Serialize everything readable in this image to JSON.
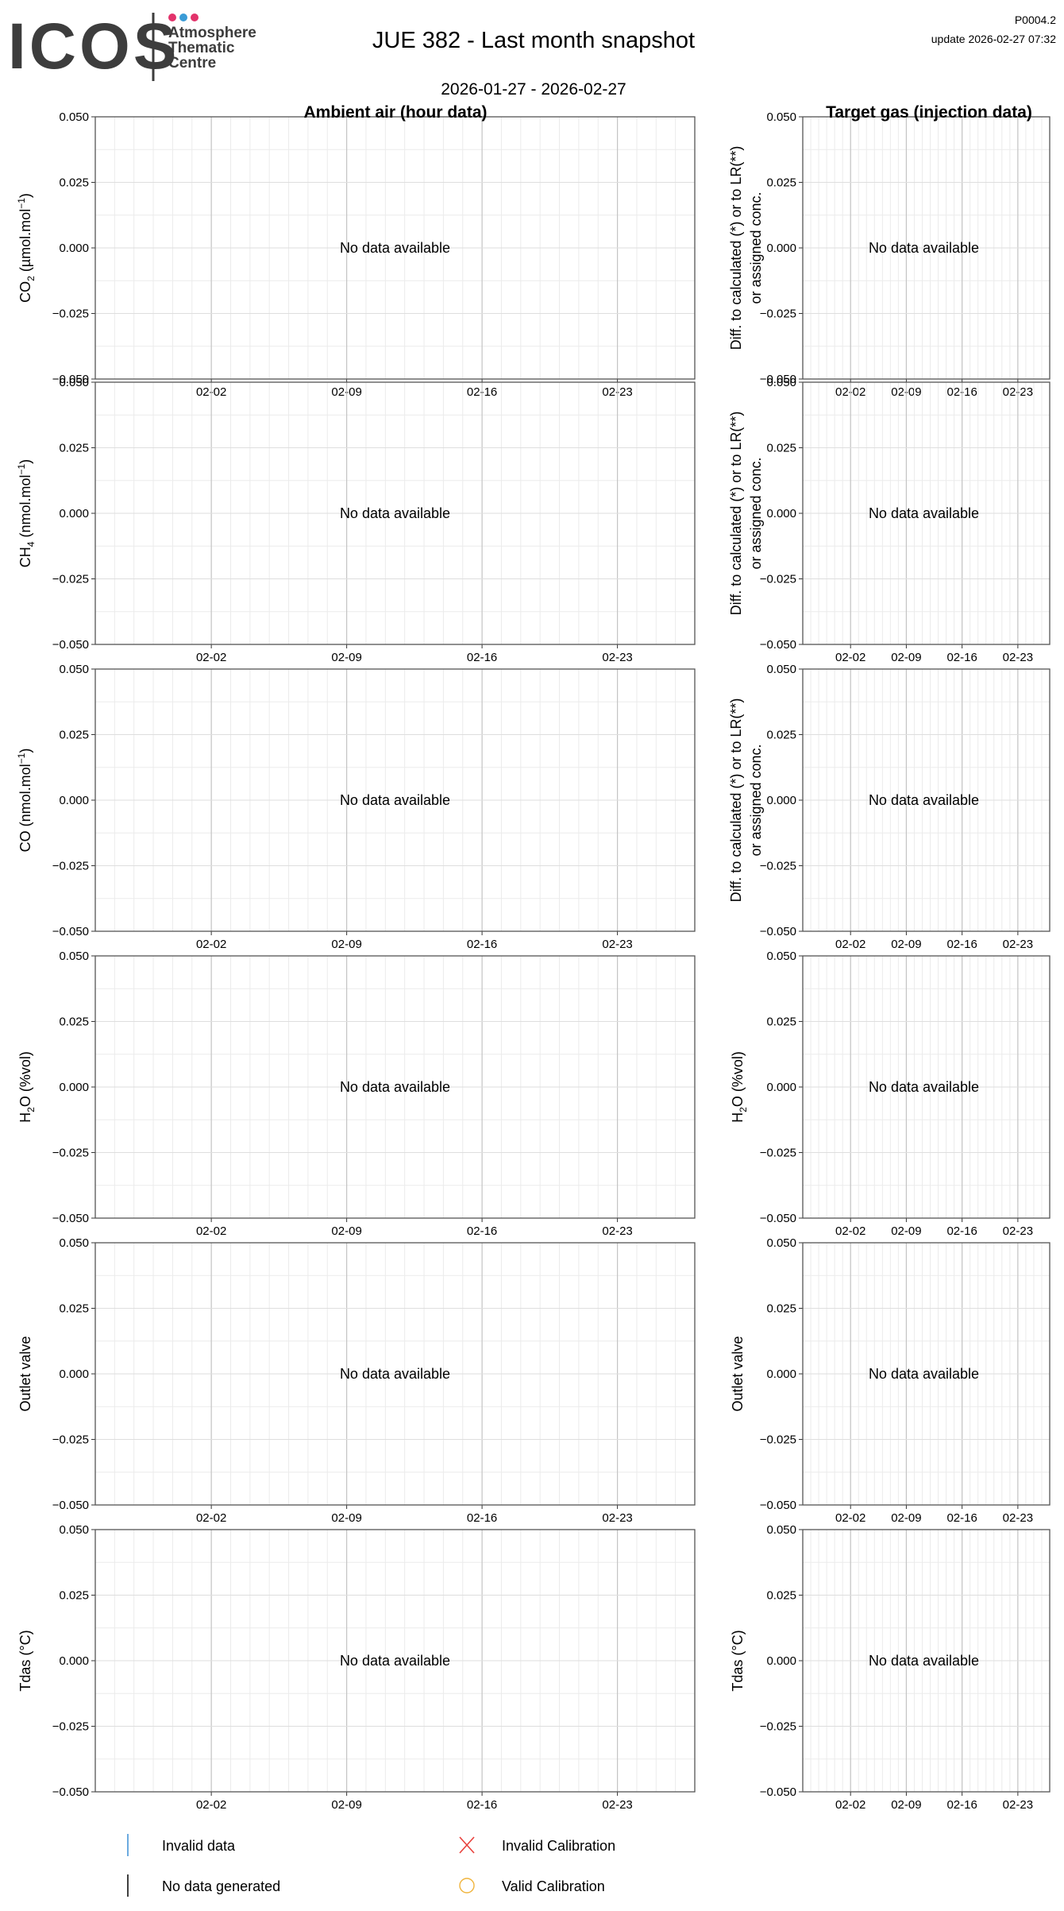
{
  "header": {
    "logo": {
      "wordmark": "ICOS",
      "line1": "Atmosphere",
      "line2": "Thematic",
      "line3": "Centre",
      "dot_colors": [
        "#e2336b",
        "#3a9bd6",
        "#e2336b"
      ]
    },
    "title": "JUE 382 - Last month snapshot",
    "date_range": "2026-01-27 - 2026-02-27",
    "code": "P0004.2",
    "update": "update  2026-02-27 07:32"
  },
  "columns": {
    "left_title": "Ambient air (hour data)",
    "right_title": "Target gas (injection data)"
  },
  "no_data_text": "No data available",
  "chart_data": [
    {
      "type": "line",
      "panel": "ambient-co2",
      "column": "left",
      "ylabel": "CO2 (µmol.mol-1)",
      "ylabel_parts": [
        "CO",
        "2",
        " (µmol.mol",
        "−1",
        ")"
      ],
      "xticks": [
        "02-02",
        "02-09",
        "02-16",
        "02-23"
      ],
      "yticks": [
        "-0.050",
        "-0.025",
        "0.000",
        "0.025",
        "0.050"
      ],
      "ylim": [
        -0.05,
        0.05
      ],
      "xlim": [
        "2026-01-27",
        "2026-02-27"
      ],
      "grid": true,
      "series": []
    },
    {
      "type": "line",
      "panel": "target-co2",
      "column": "right",
      "ylabel_lines": [
        "Diff. to calculated (*) or to LR(**)",
        "or assigned conc."
      ],
      "xticks": [
        "02-02",
        "02-09",
        "02-16",
        "02-23"
      ],
      "yticks": [
        "-0.050",
        "-0.025",
        "0.000",
        "0.025",
        "0.050"
      ],
      "ylim": [
        -0.05,
        0.05
      ],
      "xlim": [
        "2026-01-27",
        "2026-02-27"
      ],
      "grid": true,
      "series": []
    },
    {
      "type": "line",
      "panel": "ambient-ch4",
      "column": "left",
      "ylabel": "CH4 (nmol.mol-1)",
      "ylabel_parts": [
        "CH",
        "4",
        " (nmol.mol",
        "−1",
        ")"
      ],
      "xticks": [
        "02-02",
        "02-09",
        "02-16",
        "02-23"
      ],
      "yticks": [
        "-0.050",
        "-0.025",
        "0.000",
        "0.025",
        "0.050"
      ],
      "ylim": [
        -0.05,
        0.05
      ],
      "xlim": [
        "2026-01-27",
        "2026-02-27"
      ],
      "grid": true,
      "series": []
    },
    {
      "type": "line",
      "panel": "target-ch4",
      "column": "right",
      "ylabel_lines": [
        "Diff. to calculated (*) or to LR(**)",
        "or assigned conc."
      ],
      "xticks": [
        "02-02",
        "02-09",
        "02-16",
        "02-23"
      ],
      "yticks": [
        "-0.050",
        "-0.025",
        "0.000",
        "0.025",
        "0.050"
      ],
      "ylim": [
        -0.05,
        0.05
      ],
      "xlim": [
        "2026-01-27",
        "2026-02-27"
      ],
      "grid": true,
      "series": []
    },
    {
      "type": "line",
      "panel": "ambient-co",
      "column": "left",
      "ylabel": "CO (nmol.mol-1)",
      "ylabel_parts": [
        "CO (nmol.mol",
        "",
        "",
        "−1",
        ")"
      ],
      "xticks": [
        "02-02",
        "02-09",
        "02-16",
        "02-23"
      ],
      "yticks": [
        "-0.050",
        "-0.025",
        "0.000",
        "0.025",
        "0.050"
      ],
      "ylim": [
        -0.05,
        0.05
      ],
      "xlim": [
        "2026-01-27",
        "2026-02-27"
      ],
      "grid": true,
      "series": []
    },
    {
      "type": "line",
      "panel": "target-co",
      "column": "right",
      "ylabel_lines": [
        "Diff. to calculated (*) or to LR(**)",
        "or assigned conc."
      ],
      "xticks": [
        "02-02",
        "02-09",
        "02-16",
        "02-23"
      ],
      "yticks": [
        "-0.050",
        "-0.025",
        "0.000",
        "0.025",
        "0.050"
      ],
      "ylim": [
        -0.05,
        0.05
      ],
      "xlim": [
        "2026-01-27",
        "2026-02-27"
      ],
      "grid": true,
      "series": []
    },
    {
      "type": "line",
      "panel": "ambient-h2o",
      "column": "left",
      "ylabel": "H2O (%vol)",
      "ylabel_parts": [
        "H",
        "2",
        "O (%vol)",
        "",
        ""
      ],
      "xticks": [
        "02-02",
        "02-09",
        "02-16",
        "02-23"
      ],
      "yticks": [
        "-0.050",
        "-0.025",
        "0.000",
        "0.025",
        "0.050"
      ],
      "ylim": [
        -0.05,
        0.05
      ],
      "xlim": [
        "2026-01-27",
        "2026-02-27"
      ],
      "grid": true,
      "series": []
    },
    {
      "type": "line",
      "panel": "target-h2o",
      "column": "right",
      "ylabel": "H2O (%vol)",
      "ylabel_parts": [
        "H",
        "2",
        "O (%vol)",
        "",
        ""
      ],
      "xticks": [
        "02-02",
        "02-09",
        "02-16",
        "02-23"
      ],
      "yticks": [
        "-0.050",
        "-0.025",
        "0.000",
        "0.025",
        "0.050"
      ],
      "ylim": [
        -0.05,
        0.05
      ],
      "xlim": [
        "2026-01-27",
        "2026-02-27"
      ],
      "grid": true,
      "series": []
    },
    {
      "type": "line",
      "panel": "ambient-outlet",
      "column": "left",
      "ylabel": "Outlet valve",
      "ylabel_parts": [
        "Outlet valve",
        "",
        "",
        "",
        ""
      ],
      "xticks": [
        "02-02",
        "02-09",
        "02-16",
        "02-23"
      ],
      "yticks": [
        "-0.050",
        "-0.025",
        "0.000",
        "0.025",
        "0.050"
      ],
      "ylim": [
        -0.05,
        0.05
      ],
      "xlim": [
        "2026-01-27",
        "2026-02-27"
      ],
      "grid": true,
      "series": []
    },
    {
      "type": "line",
      "panel": "target-outlet",
      "column": "right",
      "ylabel": "Outlet valve",
      "ylabel_parts": [
        "Outlet valve",
        "",
        "",
        "",
        ""
      ],
      "xticks": [
        "02-02",
        "02-09",
        "02-16",
        "02-23"
      ],
      "yticks": [
        "-0.050",
        "-0.025",
        "0.000",
        "0.025",
        "0.050"
      ],
      "ylim": [
        -0.05,
        0.05
      ],
      "xlim": [
        "2026-01-27",
        "2026-02-27"
      ],
      "grid": true,
      "series": []
    },
    {
      "type": "line",
      "panel": "ambient-tdas",
      "column": "left",
      "ylabel": "Tdas (°C)",
      "ylabel_parts": [
        "Tdas (°C)",
        "",
        "",
        "",
        ""
      ],
      "xticks": [
        "02-02",
        "02-09",
        "02-16",
        "02-23"
      ],
      "yticks": [
        "-0.050",
        "-0.025",
        "0.000",
        "0.025",
        "0.050"
      ],
      "ylim": [
        -0.05,
        0.05
      ],
      "xlim": [
        "2026-01-27",
        "2026-02-27"
      ],
      "grid": true,
      "series": []
    },
    {
      "type": "line",
      "panel": "target-tdas",
      "column": "right",
      "ylabel": "Tdas (°C)",
      "ylabel_parts": [
        "Tdas (°C)",
        "",
        "",
        "",
        ""
      ],
      "xticks": [
        "02-02",
        "02-09",
        "02-16",
        "02-23"
      ],
      "yticks": [
        "-0.050",
        "-0.025",
        "0.000",
        "0.025",
        "0.050"
      ],
      "ylim": [
        -0.05,
        0.05
      ],
      "xlim": [
        "2026-01-27",
        "2026-02-27"
      ],
      "grid": true,
      "series": []
    }
  ],
  "legend": {
    "items": [
      {
        "label": "Invalid data",
        "symbol": "vline",
        "color": "#3a8fd6"
      },
      {
        "label": "Invalid Calibration",
        "symbol": "cross",
        "color": "#e8413c"
      },
      {
        "label": "No data generated",
        "symbol": "vline",
        "color": "#000000"
      },
      {
        "label": "Valid Calibration",
        "symbol": "circle",
        "color": "#f0b43c"
      }
    ]
  },
  "colors": {
    "panel_border": "#555555",
    "grid_major": "#c4c4c4",
    "grid_minor": "#ebebeb",
    "text": "#000000",
    "logo_text": "#3d3d3d"
  }
}
